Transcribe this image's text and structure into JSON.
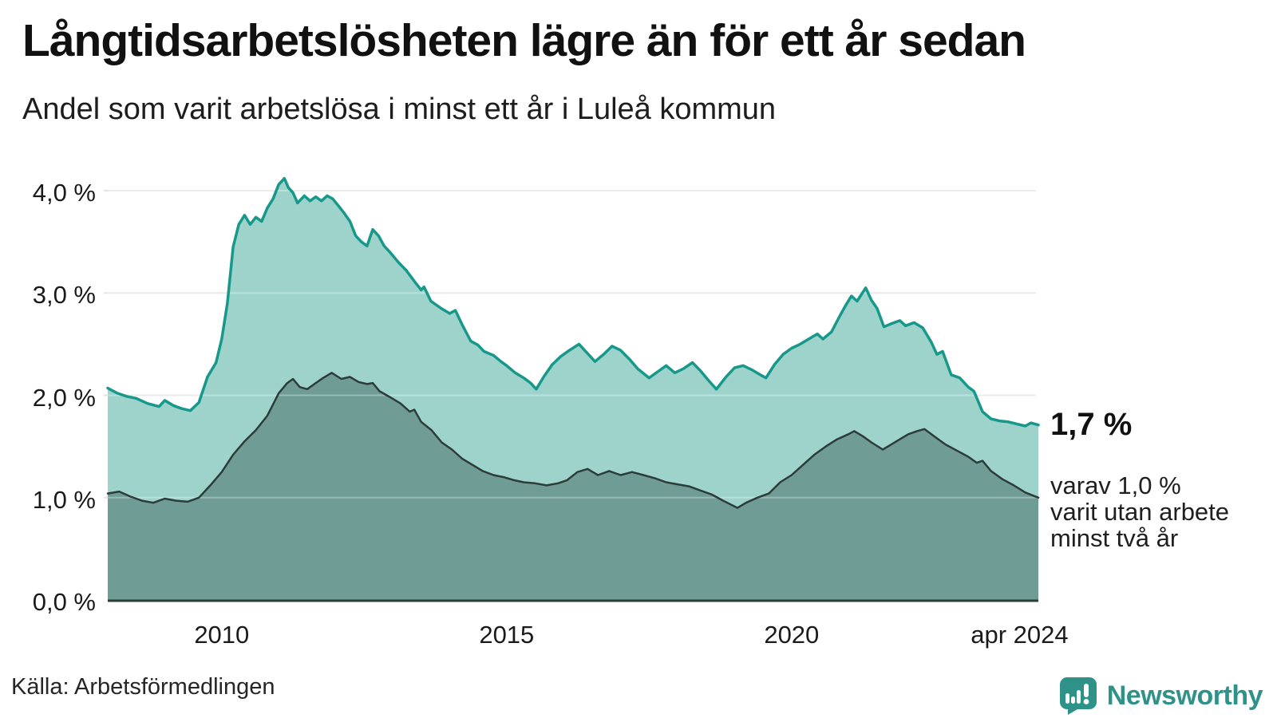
{
  "header": {
    "title": "Långtidsarbetslösheten lägre än för ett år sedan",
    "subtitle": "Andel som varit arbetslösa i minst ett år i Luleå kommun"
  },
  "chart_data": {
    "type": "area",
    "unit": "%",
    "x_unit": "decimal_year",
    "xlim": [
      2008.0,
      2024.33
    ],
    "ylim": [
      0,
      4.3
    ],
    "grid": "horizontal",
    "colors": {
      "total_line": "#17988a",
      "total_fill": "#9ed3cc",
      "two_year_line": "#2c3c39",
      "two_year_fill": "#6f9d96",
      "gridline": "#e3e3e3",
      "axis": "#2c3c39"
    },
    "y_ticks": [
      {
        "v": 0,
        "label": "0,0 %"
      },
      {
        "v": 1,
        "label": "1,0 %"
      },
      {
        "v": 2,
        "label": "2,0 %"
      },
      {
        "v": 3,
        "label": "3,0 %"
      },
      {
        "v": 4,
        "label": "4,0 %"
      }
    ],
    "x_ticks": [
      {
        "t": 2010.0,
        "label": "2010"
      },
      {
        "t": 2015.0,
        "label": "2015"
      },
      {
        "t": 2020.0,
        "label": "2020"
      },
      {
        "t": 2024.0,
        "label": "apr 2024"
      }
    ],
    "series": [
      {
        "name": "Andel arbetslösa minst ett år",
        "points": [
          [
            2008.0,
            2.07
          ],
          [
            2008.17,
            2.02
          ],
          [
            2008.33,
            1.99
          ],
          [
            2008.5,
            1.97
          ],
          [
            2008.7,
            1.92
          ],
          [
            2008.9,
            1.89
          ],
          [
            2009.0,
            1.95
          ],
          [
            2009.15,
            1.9
          ],
          [
            2009.3,
            1.87
          ],
          [
            2009.45,
            1.85
          ],
          [
            2009.6,
            1.93
          ],
          [
            2009.75,
            2.18
          ],
          [
            2009.9,
            2.32
          ],
          [
            2010.0,
            2.55
          ],
          [
            2010.1,
            2.9
          ],
          [
            2010.2,
            3.45
          ],
          [
            2010.3,
            3.67
          ],
          [
            2010.4,
            3.76
          ],
          [
            2010.5,
            3.67
          ],
          [
            2010.6,
            3.74
          ],
          [
            2010.7,
            3.7
          ],
          [
            2010.8,
            3.83
          ],
          [
            2010.9,
            3.92
          ],
          [
            2011.0,
            4.06
          ],
          [
            2011.1,
            4.12
          ],
          [
            2011.17,
            4.03
          ],
          [
            2011.25,
            3.98
          ],
          [
            2011.33,
            3.88
          ],
          [
            2011.45,
            3.95
          ],
          [
            2011.55,
            3.9
          ],
          [
            2011.65,
            3.94
          ],
          [
            2011.75,
            3.9
          ],
          [
            2011.85,
            3.95
          ],
          [
            2011.95,
            3.92
          ],
          [
            2012.05,
            3.85
          ],
          [
            2012.15,
            3.78
          ],
          [
            2012.25,
            3.7
          ],
          [
            2012.35,
            3.56
          ],
          [
            2012.45,
            3.5
          ],
          [
            2012.55,
            3.46
          ],
          [
            2012.65,
            3.62
          ],
          [
            2012.75,
            3.56
          ],
          [
            2012.85,
            3.46
          ],
          [
            2012.95,
            3.4
          ],
          [
            2013.1,
            3.3
          ],
          [
            2013.24,
            3.22
          ],
          [
            2013.4,
            3.1
          ],
          [
            2013.5,
            3.03
          ],
          [
            2013.55,
            3.06
          ],
          [
            2013.67,
            2.92
          ],
          [
            2013.85,
            2.85
          ],
          [
            2014.0,
            2.8
          ],
          [
            2014.1,
            2.83
          ],
          [
            2014.22,
            2.69
          ],
          [
            2014.37,
            2.53
          ],
          [
            2014.5,
            2.49
          ],
          [
            2014.6,
            2.43
          ],
          [
            2014.77,
            2.39
          ],
          [
            2014.9,
            2.33
          ],
          [
            2015.0,
            2.29
          ],
          [
            2015.15,
            2.22
          ],
          [
            2015.3,
            2.17
          ],
          [
            2015.42,
            2.12
          ],
          [
            2015.52,
            2.06
          ],
          [
            2015.65,
            2.18
          ],
          [
            2015.8,
            2.3
          ],
          [
            2015.95,
            2.38
          ],
          [
            2016.1,
            2.44
          ],
          [
            2016.27,
            2.5
          ],
          [
            2016.4,
            2.42
          ],
          [
            2016.55,
            2.33
          ],
          [
            2016.7,
            2.4
          ],
          [
            2016.85,
            2.48
          ],
          [
            2017.0,
            2.44
          ],
          [
            2017.16,
            2.35
          ],
          [
            2017.3,
            2.26
          ],
          [
            2017.5,
            2.17
          ],
          [
            2017.65,
            2.23
          ],
          [
            2017.8,
            2.29
          ],
          [
            2017.95,
            2.22
          ],
          [
            2018.1,
            2.26
          ],
          [
            2018.26,
            2.32
          ],
          [
            2018.4,
            2.24
          ],
          [
            2018.55,
            2.14
          ],
          [
            2018.68,
            2.06
          ],
          [
            2018.85,
            2.18
          ],
          [
            2019.0,
            2.27
          ],
          [
            2019.15,
            2.29
          ],
          [
            2019.3,
            2.25
          ],
          [
            2019.45,
            2.2
          ],
          [
            2019.55,
            2.17
          ],
          [
            2019.7,
            2.3
          ],
          [
            2019.85,
            2.4
          ],
          [
            2020.0,
            2.46
          ],
          [
            2020.15,
            2.5
          ],
          [
            2020.3,
            2.55
          ],
          [
            2020.45,
            2.6
          ],
          [
            2020.55,
            2.55
          ],
          [
            2020.7,
            2.62
          ],
          [
            2020.85,
            2.78
          ],
          [
            2020.95,
            2.88
          ],
          [
            2021.05,
            2.97
          ],
          [
            2021.15,
            2.92
          ],
          [
            2021.3,
            3.05
          ],
          [
            2021.4,
            2.93
          ],
          [
            2021.5,
            2.85
          ],
          [
            2021.62,
            2.67
          ],
          [
            2021.75,
            2.7
          ],
          [
            2021.9,
            2.73
          ],
          [
            2022.0,
            2.68
          ],
          [
            2022.15,
            2.71
          ],
          [
            2022.3,
            2.66
          ],
          [
            2022.45,
            2.52
          ],
          [
            2022.55,
            2.4
          ],
          [
            2022.65,
            2.43
          ],
          [
            2022.8,
            2.2
          ],
          [
            2022.95,
            2.17
          ],
          [
            2023.1,
            2.08
          ],
          [
            2023.2,
            2.04
          ],
          [
            2023.35,
            1.84
          ],
          [
            2023.5,
            1.77
          ],
          [
            2023.65,
            1.75
          ],
          [
            2023.8,
            1.74
          ],
          [
            2023.95,
            1.72
          ],
          [
            2024.1,
            1.7
          ],
          [
            2024.2,
            1.73
          ],
          [
            2024.33,
            1.71
          ]
        ]
      },
      {
        "name": "Andel arbetslösa minst två år",
        "points": [
          [
            2008.0,
            1.04
          ],
          [
            2008.2,
            1.06
          ],
          [
            2008.4,
            1.01
          ],
          [
            2008.6,
            0.97
          ],
          [
            2008.8,
            0.95
          ],
          [
            2009.0,
            0.99
          ],
          [
            2009.2,
            0.97
          ],
          [
            2009.4,
            0.96
          ],
          [
            2009.6,
            1.0
          ],
          [
            2009.8,
            1.12
          ],
          [
            2010.0,
            1.25
          ],
          [
            2010.2,
            1.42
          ],
          [
            2010.4,
            1.55
          ],
          [
            2010.6,
            1.66
          ],
          [
            2010.8,
            1.8
          ],
          [
            2011.0,
            2.02
          ],
          [
            2011.15,
            2.12
          ],
          [
            2011.25,
            2.16
          ],
          [
            2011.37,
            2.08
          ],
          [
            2011.5,
            2.06
          ],
          [
            2011.65,
            2.12
          ],
          [
            2011.78,
            2.17
          ],
          [
            2011.93,
            2.22
          ],
          [
            2012.1,
            2.16
          ],
          [
            2012.25,
            2.18
          ],
          [
            2012.4,
            2.13
          ],
          [
            2012.55,
            2.11
          ],
          [
            2012.65,
            2.12
          ],
          [
            2012.77,
            2.04
          ],
          [
            2012.96,
            1.98
          ],
          [
            2013.14,
            1.92
          ],
          [
            2013.3,
            1.84
          ],
          [
            2013.38,
            1.86
          ],
          [
            2013.5,
            1.74
          ],
          [
            2013.68,
            1.66
          ],
          [
            2013.86,
            1.54
          ],
          [
            2014.04,
            1.47
          ],
          [
            2014.22,
            1.38
          ],
          [
            2014.4,
            1.32
          ],
          [
            2014.58,
            1.26
          ],
          [
            2014.77,
            1.22
          ],
          [
            2014.95,
            1.2
          ],
          [
            2015.13,
            1.17
          ],
          [
            2015.3,
            1.15
          ],
          [
            2015.5,
            1.14
          ],
          [
            2015.7,
            1.12
          ],
          [
            2015.9,
            1.14
          ],
          [
            2016.06,
            1.17
          ],
          [
            2016.24,
            1.25
          ],
          [
            2016.42,
            1.28
          ],
          [
            2016.6,
            1.22
          ],
          [
            2016.8,
            1.26
          ],
          [
            2017.0,
            1.22
          ],
          [
            2017.2,
            1.25
          ],
          [
            2017.4,
            1.22
          ],
          [
            2017.6,
            1.19
          ],
          [
            2017.8,
            1.15
          ],
          [
            2018.0,
            1.13
          ],
          [
            2018.2,
            1.11
          ],
          [
            2018.4,
            1.07
          ],
          [
            2018.6,
            1.03
          ],
          [
            2018.8,
            0.97
          ],
          [
            2019.05,
            0.9
          ],
          [
            2019.2,
            0.95
          ],
          [
            2019.4,
            1.0
          ],
          [
            2019.6,
            1.04
          ],
          [
            2019.8,
            1.15
          ],
          [
            2020.0,
            1.22
          ],
          [
            2020.2,
            1.32
          ],
          [
            2020.4,
            1.42
          ],
          [
            2020.6,
            1.5
          ],
          [
            2020.8,
            1.57
          ],
          [
            2021.0,
            1.62
          ],
          [
            2021.1,
            1.65
          ],
          [
            2021.25,
            1.6
          ],
          [
            2021.4,
            1.54
          ],
          [
            2021.6,
            1.47
          ],
          [
            2021.75,
            1.52
          ],
          [
            2021.9,
            1.57
          ],
          [
            2022.05,
            1.62
          ],
          [
            2022.2,
            1.65
          ],
          [
            2022.33,
            1.67
          ],
          [
            2022.5,
            1.6
          ],
          [
            2022.7,
            1.52
          ],
          [
            2022.9,
            1.46
          ],
          [
            2023.1,
            1.4
          ],
          [
            2023.25,
            1.34
          ],
          [
            2023.35,
            1.36
          ],
          [
            2023.5,
            1.26
          ],
          [
            2023.7,
            1.18
          ],
          [
            2023.9,
            1.12
          ],
          [
            2024.1,
            1.05
          ],
          [
            2024.33,
            1.0
          ]
        ]
      }
    ],
    "annotations": {
      "end_value": "1,7 %",
      "sub_lines": [
        "varav 1,0 %",
        "varit utan arbete",
        "minst två år"
      ]
    }
  },
  "footer": {
    "source": "Källa: Arbetsförmedlingen",
    "brand": "Newsworthy"
  }
}
